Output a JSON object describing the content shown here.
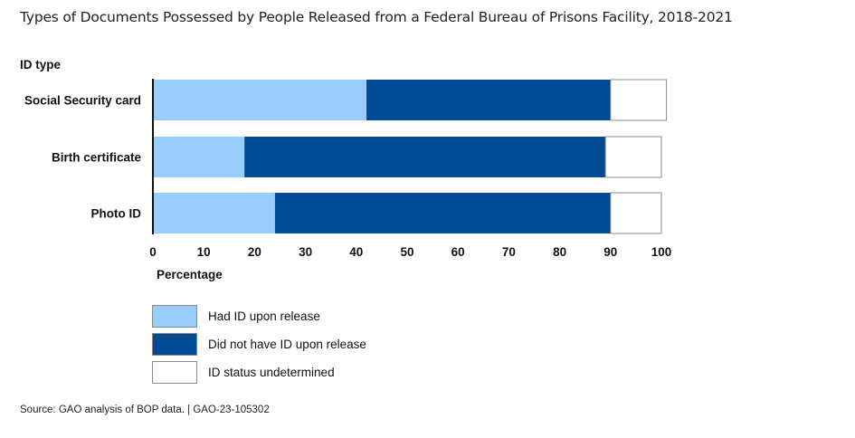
{
  "title": "Types of Documents Possessed by People Released from a Federal Bureau of Prisons Facility, 2018-2021",
  "source": "Source: GAO analysis of BOP data.  |  GAO-23-105302",
  "colors": {
    "had_id": "#99ccff",
    "did_not_have_id": "#004c94",
    "undetermined": "#ffffff"
  },
  "chart_data": {
    "type": "bar",
    "orientation": "horizontal",
    "stacked": true,
    "title": "Types of Documents Possessed by People Released from a Federal Bureau of Prisons Facility, 2018-2021",
    "ylabel": "ID type",
    "xlabel": "Percentage",
    "xlim": [
      0,
      100
    ],
    "xticks": [
      0,
      10,
      20,
      30,
      40,
      50,
      60,
      70,
      80,
      90,
      100
    ],
    "grid": false,
    "legend_position": "bottom-left",
    "categories": [
      "Social Security card",
      "Birth certificate",
      "Photo ID"
    ],
    "series": [
      {
        "name": "Had ID upon release",
        "color": "#99ccff",
        "values": [
          42,
          18,
          24
        ]
      },
      {
        "name": "Did not have ID upon release",
        "color": "#004c94",
        "values": [
          48,
          71,
          66
        ]
      },
      {
        "name": "ID status undetermined",
        "color": "#ffffff",
        "values": [
          11,
          11,
          10
        ]
      }
    ]
  }
}
